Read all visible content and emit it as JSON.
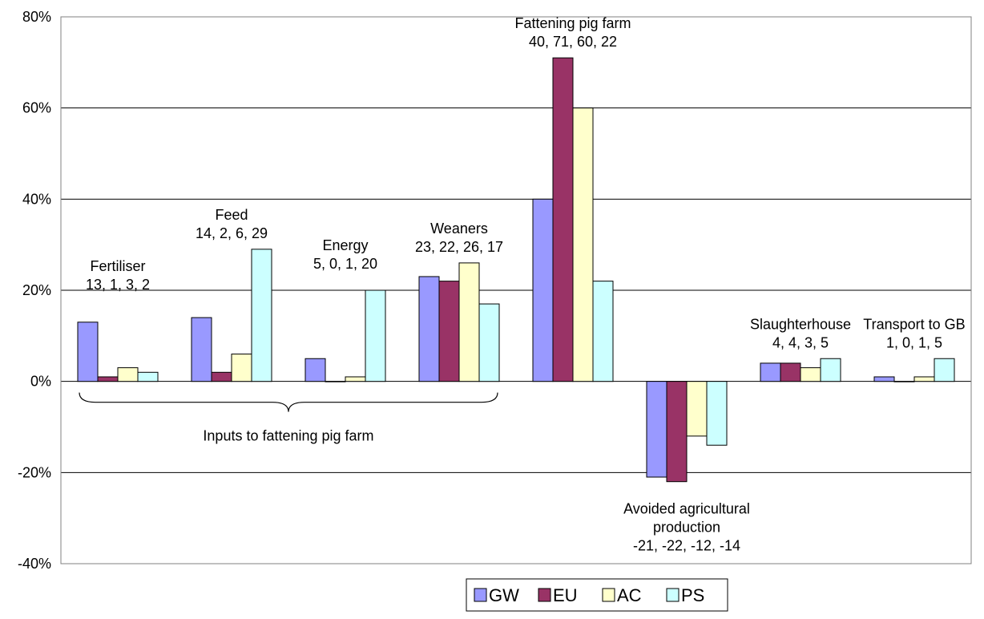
{
  "chart_data": {
    "type": "bar",
    "categories": [
      "Fertiliser",
      "Feed",
      "Energy",
      "Weaners",
      "Fattening pig farm",
      "Avoided agricultural production",
      "Slaughterhouse",
      "Transport to GB"
    ],
    "series": [
      {
        "name": "GW",
        "color": "#9999ff",
        "values": [
          13,
          14,
          5,
          23,
          40,
          -21,
          4,
          1
        ]
      },
      {
        "name": "EU",
        "color": "#993366",
        "values": [
          1,
          2,
          0,
          22,
          71,
          -22,
          4,
          0
        ]
      },
      {
        "name": "AC",
        "color": "#ffffcc",
        "values": [
          3,
          6,
          1,
          26,
          60,
          -12,
          3,
          1
        ]
      },
      {
        "name": "PS",
        "color": "#ccffff",
        "values": [
          2,
          29,
          20,
          17,
          22,
          -14,
          5,
          5
        ]
      }
    ],
    "ylim": [
      -40,
      80
    ],
    "yticks": [
      -40,
      -20,
      0,
      20,
      40,
      60,
      80
    ],
    "ytick_labels": [
      "-40%",
      "-20%",
      "0%",
      "20%",
      "40%",
      "60%",
      "80%"
    ],
    "grid": true,
    "legend_position": "bottom",
    "annotations": [
      {
        "lines": [
          "Fertiliser",
          "13, 1, 3, 2"
        ]
      },
      {
        "lines": [
          "Feed",
          "14, 2, 6, 29"
        ]
      },
      {
        "lines": [
          "Energy",
          "5, 0, 1, 20"
        ]
      },
      {
        "lines": [
          "Weaners",
          "23, 22, 26, 17"
        ]
      },
      {
        "lines": [
          "Fattening pig farm",
          "40, 71, 60, 22"
        ]
      },
      {
        "lines": [
          "Avoided agricultural",
          "production",
          "-21, -22, -12, -14"
        ]
      },
      {
        "lines": [
          "Slaughterhouse",
          "4, 4, 3, 5"
        ]
      },
      {
        "lines": [
          "Transport to GB",
          "1, 0, 1, 5"
        ]
      }
    ],
    "brace_label": "Inputs to fattening pig farm"
  }
}
